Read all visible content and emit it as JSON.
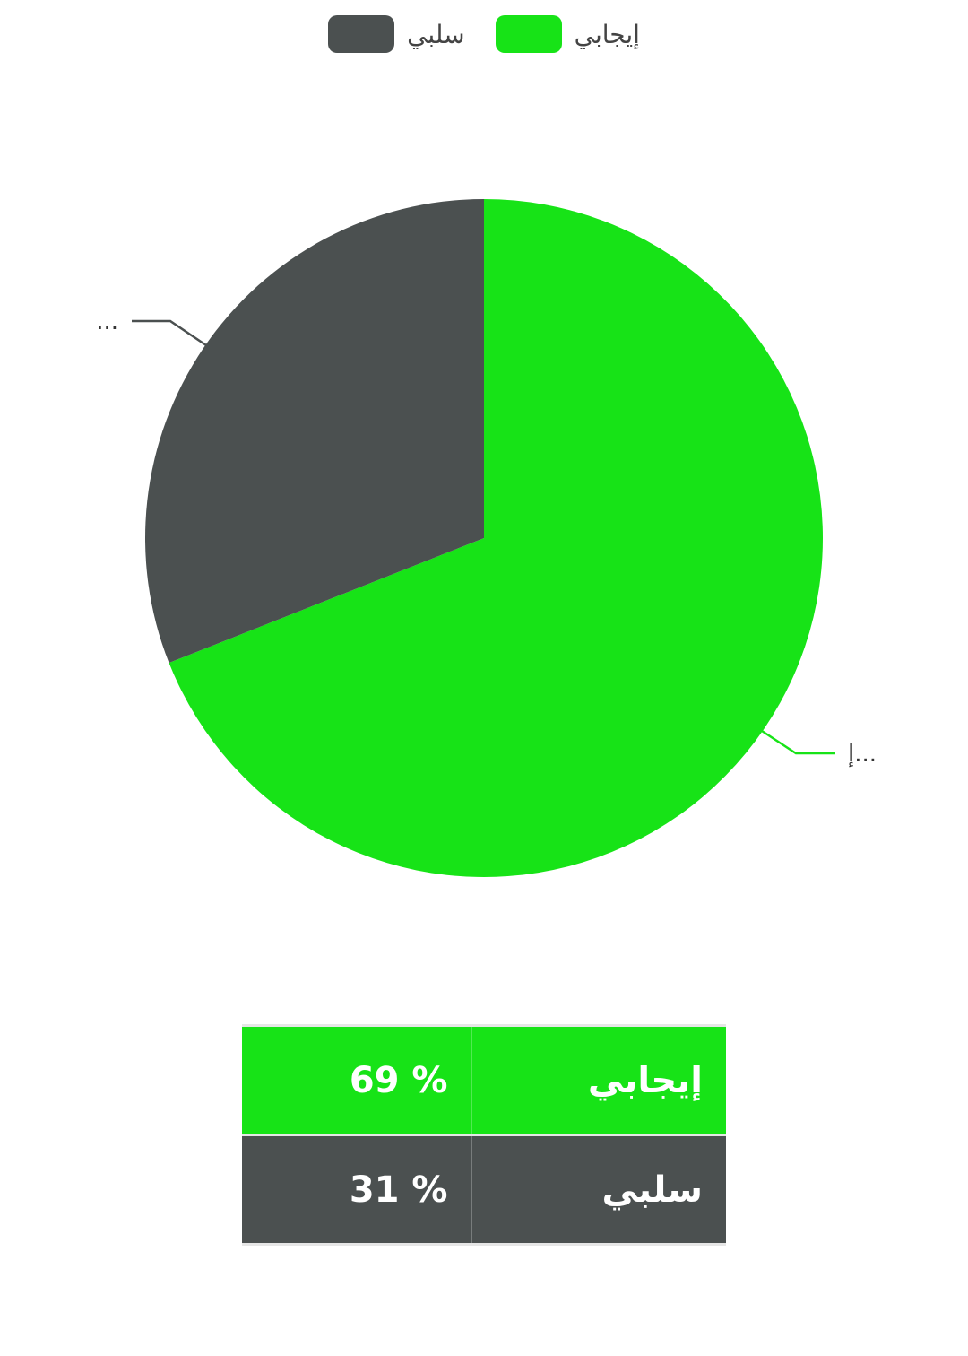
{
  "legend": {
    "items": [
      {
        "label": "سلبي",
        "color": "#4b5050"
      },
      {
        "label": "إيجابي",
        "color": "#17e317"
      }
    ]
  },
  "chart_data": {
    "type": "pie",
    "categories": [
      "إيجابي",
      "سلبي"
    ],
    "values": [
      69,
      31
    ],
    "colors": [
      "#17e317",
      "#4b5050"
    ],
    "slice_labels": [
      "إ...",
      "..."
    ],
    "legend_position": "top-center",
    "title": ""
  },
  "table": {
    "rows": [
      {
        "name": "إيجابي",
        "value": "69 %",
        "color": "#17e317"
      },
      {
        "name": "سلبي",
        "value": "31 %",
        "color": "#4b5050"
      }
    ]
  }
}
